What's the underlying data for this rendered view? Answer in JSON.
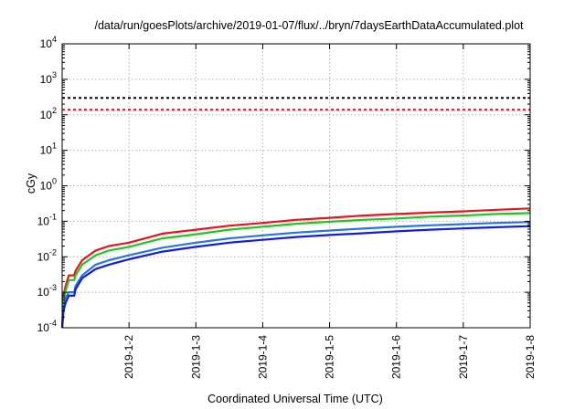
{
  "chart_data": {
    "type": "line",
    "title": "/data/run/goesPlots/archive/2019-01-07/flux/../bryn/7daysEarthDataAccumulated.plot",
    "xlabel": "Coordinated Universal Time (UTC)",
    "ylabel": "cGy",
    "y_scale": "log",
    "ylim": [
      0.0001,
      10000
    ],
    "xlim": [
      0,
      7
    ],
    "x_tick_labels": [
      "2019-1-2",
      "2019-1-3",
      "2019-1-4",
      "2019-1-5",
      "2019-1-6",
      "2019-1-7",
      "2019-1-8"
    ],
    "x_tick_positions": [
      1,
      2,
      3,
      4,
      5,
      6,
      7
    ],
    "y_tick_labels": [
      {
        "base": "10",
        "exp": "-4"
      },
      {
        "base": "10",
        "exp": "-3"
      },
      {
        "base": "10",
        "exp": "-2"
      },
      {
        "base": "10",
        "exp": "-1"
      },
      {
        "base": "10",
        "exp": "0"
      },
      {
        "base": "10",
        "exp": "1"
      },
      {
        "base": "10",
        "exp": "2"
      },
      {
        "base": "10",
        "exp": "3"
      },
      {
        "base": "10",
        "exp": "4"
      }
    ],
    "grid": true,
    "reference_lines": [
      {
        "y": 300,
        "color": "#000000",
        "style": "dashed"
      },
      {
        "y": 140,
        "color": "#e8141c",
        "style": "dashed"
      }
    ],
    "series": [
      {
        "color": "#e8141c",
        "x": [
          0,
          0.02,
          0.05,
          0.1,
          0.18,
          0.2,
          0.3,
          0.5,
          0.7,
          1.0,
          1.5,
          2.0,
          2.5,
          3.0,
          3.5,
          4.0,
          4.5,
          5.0,
          5.5,
          6.0,
          6.5,
          7.0
        ],
        "y": [
          0.0001,
          0.0008,
          0.0015,
          0.003,
          0.003,
          0.004,
          0.008,
          0.015,
          0.02,
          0.025,
          0.045,
          0.058,
          0.075,
          0.09,
          0.11,
          0.125,
          0.145,
          0.16,
          0.175,
          0.19,
          0.21,
          0.23
        ]
      },
      {
        "color": "#22c422",
        "x": [
          0,
          0.02,
          0.05,
          0.1,
          0.18,
          0.2,
          0.3,
          0.5,
          0.7,
          1.0,
          1.5,
          2.0,
          2.5,
          3.0,
          3.5,
          4.0,
          4.5,
          5.0,
          5.5,
          6.0,
          6.5,
          7.0
        ],
        "y": [
          0.0001,
          0.0006,
          0.0011,
          0.0022,
          0.0022,
          0.003,
          0.006,
          0.011,
          0.015,
          0.019,
          0.033,
          0.043,
          0.058,
          0.07,
          0.085,
          0.097,
          0.11,
          0.12,
          0.135,
          0.145,
          0.16,
          0.17
        ]
      },
      {
        "color": "#2277e0",
        "x": [
          0,
          0.02,
          0.05,
          0.1,
          0.18,
          0.2,
          0.3,
          0.5,
          0.7,
          1.0,
          1.5,
          2.0,
          2.5,
          3.0,
          3.5,
          4.0,
          4.5,
          5.0,
          5.5,
          6.0,
          6.5,
          7.0
        ],
        "y": [
          0.0001,
          0.0004,
          0.0007,
          0.001,
          0.001,
          0.0015,
          0.003,
          0.006,
          0.008,
          0.011,
          0.018,
          0.025,
          0.033,
          0.04,
          0.048,
          0.055,
          0.062,
          0.07,
          0.077,
          0.083,
          0.09,
          0.095
        ]
      },
      {
        "color": "#1a1ad8",
        "x": [
          0,
          0.02,
          0.05,
          0.1,
          0.18,
          0.2,
          0.3,
          0.5,
          0.7,
          1.0,
          1.5,
          2.0,
          2.5,
          3.0,
          3.5,
          4.0,
          4.5,
          5.0,
          5.5,
          6.0,
          6.5,
          7.0
        ],
        "y": [
          0.0001,
          0.0003,
          0.0005,
          0.0008,
          0.0008,
          0.0012,
          0.0025,
          0.0045,
          0.006,
          0.0085,
          0.014,
          0.019,
          0.025,
          0.03,
          0.036,
          0.041,
          0.046,
          0.052,
          0.058,
          0.063,
          0.068,
          0.073
        ]
      }
    ]
  }
}
